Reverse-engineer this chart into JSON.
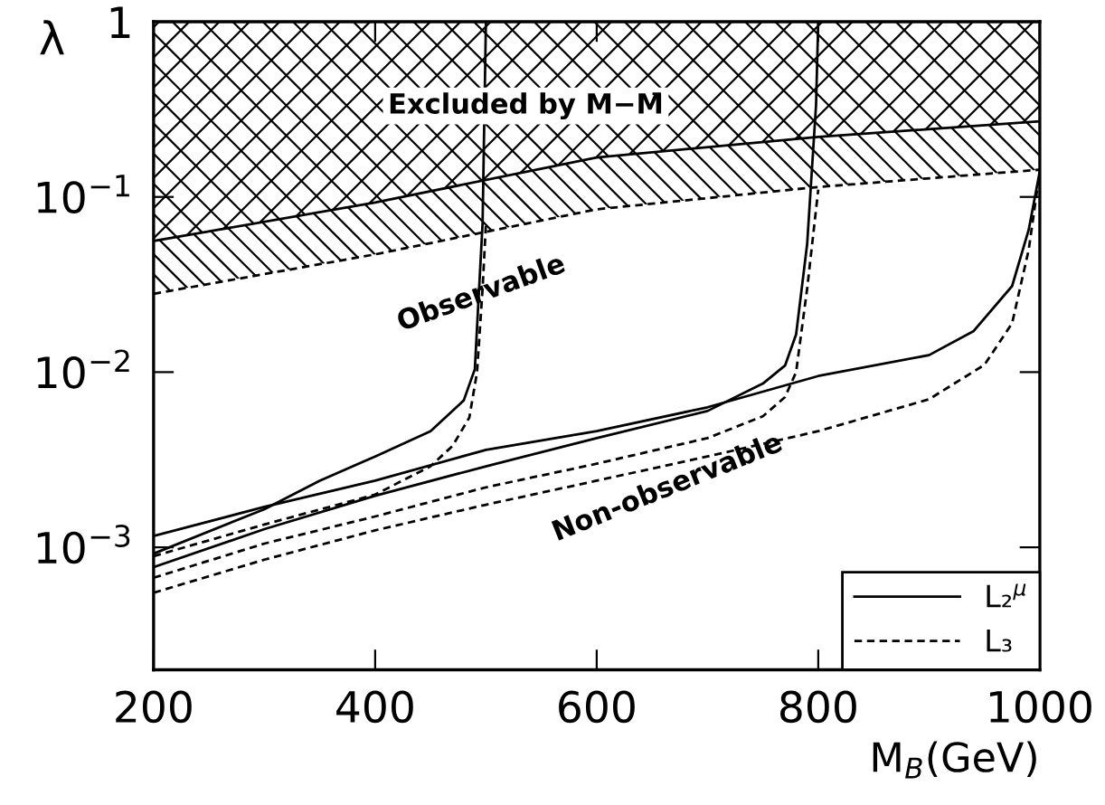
{
  "chart_data": {
    "type": "line",
    "xlabel": "M$_{B}$(GeV)",
    "ylabel": "λ",
    "log": "y",
    "xlim": [
      200,
      1000
    ],
    "xticks": [
      200,
      400,
      600,
      800,
      1000
    ],
    "ylim": [
      0.0002,
      1
    ],
    "yticks": [
      {
        "value": 0.001,
        "label": "10$^{−3}$"
      },
      {
        "value": 0.01,
        "label": "10$^{−2}$"
      },
      {
        "value": 0.1,
        "label": "10$^{−1}$"
      },
      1
    ],
    "grid": false,
    "legend": "bottom right",
    "marker": "none",
    "annotations": [
      "Excluded by M−M̄",
      "Observable",
      "Non-observable"
    ],
    "series": [
      {
        "color": "#000000",
        "line_style": "solid",
        "x": [
          200,
          400,
          600,
          800,
          1000
        ],
        "values": [
          0.056,
          0.093,
          0.168,
          0.22,
          0.27
        ]
      },
      {
        "color": "#000000",
        "line_style": "dashed",
        "x": [
          200,
          400,
          600,
          800,
          1000
        ],
        "values": [
          0.028,
          0.047,
          0.085,
          0.114,
          0.143
        ]
      },
      {
        "name": "L₂$^{μ}$",
        "color": "#000000",
        "line_style": "solid",
        "x": [
          200,
          300,
          350,
          400,
          450,
          480,
          490,
          497,
          500
        ],
        "values": [
          0.00092,
          0.00165,
          0.0024,
          0.0033,
          0.0046,
          0.0069,
          0.0104,
          0.071,
          1
        ]
      },
      {
        "color": "#000000",
        "line_style": "solid",
        "x": [
          200,
          300,
          400,
          500,
          600,
          700,
          750,
          770,
          780,
          790,
          798,
          800
        ],
        "values": [
          0.00077,
          0.00127,
          0.00197,
          0.0029,
          0.0042,
          0.006,
          0.0086,
          0.0109,
          0.0164,
          0.054,
          0.334,
          1
        ]
      },
      {
        "color": "#000000",
        "line_style": "solid",
        "x": [
          200,
          300,
          400,
          500,
          600,
          700,
          800,
          900,
          940,
          975,
          990,
          1000
        ],
        "values": [
          0.00116,
          0.0017,
          0.0024,
          0.0036,
          0.0046,
          0.0063,
          0.0095,
          0.0125,
          0.0171,
          0.031,
          0.065,
          0.14
        ]
      },
      {
        "name": "L₃",
        "color": "#000000",
        "line_style": "dashed",
        "x": [
          200,
          300,
          400,
          450,
          470,
          485,
          492,
          497,
          500
        ],
        "values": [
          0.00089,
          0.00135,
          0.002,
          0.0029,
          0.0038,
          0.0055,
          0.01,
          0.03,
          0.07
        ]
      },
      {
        "color": "#000000",
        "line_style": "dashed",
        "x": [
          200,
          300,
          400,
          500,
          600,
          700,
          750,
          770,
          780,
          790,
          800
        ],
        "values": [
          0.00067,
          0.00105,
          0.0015,
          0.0022,
          0.003,
          0.0042,
          0.0056,
          0.0072,
          0.01,
          0.03,
          0.11
        ]
      },
      {
        "color": "#000000",
        "line_style": "dashed",
        "x": [
          200,
          300,
          400,
          500,
          600,
          700,
          800,
          900,
          950,
          975,
          990,
          1000
        ],
        "values": [
          0.00055,
          0.00085,
          0.00125,
          0.00175,
          0.0024,
          0.0033,
          0.0046,
          0.007,
          0.011,
          0.019,
          0.05,
          0.14
        ]
      }
    ]
  }
}
